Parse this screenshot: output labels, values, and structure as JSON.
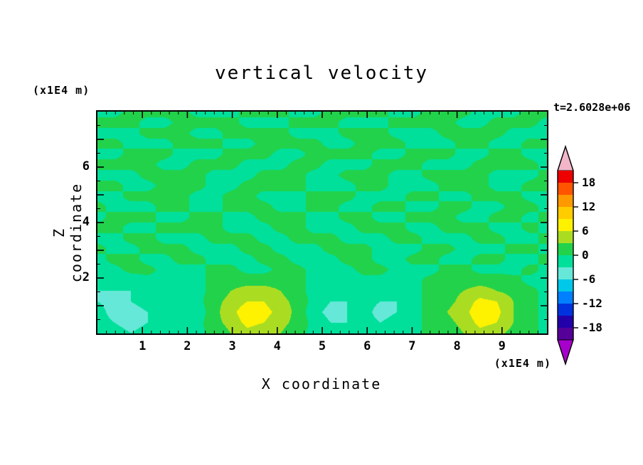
{
  "title": "vertical velocity",
  "time_label": "t=2.6028e+06",
  "x_axis_label": "X coordinate",
  "y_axis_label": "Z coordinate",
  "x_axis_unit": "(x1E4 m)",
  "y_axis_unit": "(x1E4 m)",
  "chart_data": {
    "type": "heatmap",
    "title": "vertical velocity",
    "xlabel": "X coordinate",
    "ylabel": "Z coordinate",
    "x_unit": "(x1E4 m)",
    "z_unit": "(x1E4 m)",
    "time": "t=2.6028e+06",
    "x_range": [
      0,
      10
    ],
    "z_range": [
      0,
      8
    ],
    "x_tick_labels": [
      "1",
      "2",
      "3",
      "4",
      "5",
      "6",
      "7",
      "8",
      "9"
    ],
    "x_tick_values": [
      1,
      2,
      3,
      4,
      5,
      6,
      7,
      8,
      9
    ],
    "x_minor_step": 0.2,
    "z_tick_labels": [
      "2",
      "4",
      "6"
    ],
    "z_tick_values": [
      2,
      4,
      6
    ],
    "z_major_values": [
      1,
      2,
      3,
      4,
      5,
      6,
      7
    ],
    "z_minor_step": 0.5,
    "contour_interval": 3,
    "contour_max": 21,
    "colorbar": {
      "labels": [
        "18",
        "12",
        "6",
        "0",
        "-6",
        "-12",
        "-18"
      ],
      "label_values": [
        18,
        12,
        6,
        0,
        -6,
        -12,
        -18
      ],
      "segment_colors_top_to_bottom": [
        "#ee0000",
        "#ff5500",
        "#ff9900",
        "#ffcc00",
        "#fff200",
        "#aadd22",
        "#22d24b",
        "#00e09b",
        "#66e8d8",
        "#00c8e8",
        "#0080ff",
        "#0033dd",
        "#2200aa",
        "#550099"
      ],
      "over_color": "#f2b6c8",
      "under_color": "#a800cc"
    },
    "grid": {
      "nx": 28,
      "nz": 22,
      "order": "rows from top (z=8) to bottom (z=0), columns x=0..10",
      "values": [
        [
          -1,
          -1,
          1,
          1,
          1,
          1,
          -1,
          -1,
          -1,
          1,
          1,
          1,
          -1,
          -1,
          1,
          1,
          1,
          1,
          -1,
          -1,
          1,
          1,
          1,
          -1,
          -1,
          -1,
          1,
          1
        ],
        [
          1,
          1,
          1,
          -1,
          -1,
          1,
          1,
          1,
          1,
          -1,
          -1,
          -1,
          1,
          1,
          1,
          -1,
          -1,
          -1,
          1,
          1,
          1,
          1,
          -1,
          -1,
          1,
          1,
          1,
          -1
        ],
        [
          -1,
          -1,
          -1,
          1,
          1,
          1,
          -1,
          -1,
          1,
          1,
          1,
          1,
          -1,
          -1,
          -1,
          1,
          1,
          1,
          -1,
          -1,
          -1,
          1,
          1,
          1,
          1,
          -1,
          -1,
          -1
        ],
        [
          1,
          1,
          -1,
          -1,
          -1,
          1,
          1,
          1,
          -1,
          -1,
          1,
          1,
          1,
          1,
          -1,
          -1,
          1,
          1,
          1,
          -1,
          -1,
          -1,
          1,
          1,
          -1,
          -1,
          1,
          1
        ],
        [
          -1,
          -1,
          1,
          1,
          1,
          -1,
          -1,
          -1,
          1,
          1,
          1,
          -1,
          -1,
          1,
          1,
          1,
          1,
          -1,
          -1,
          1,
          1,
          1,
          -1,
          -1,
          1,
          1,
          -1,
          -1
        ],
        [
          1,
          1,
          1,
          1,
          -1,
          -1,
          1,
          1,
          1,
          -1,
          -1,
          -1,
          1,
          1,
          -1,
          -1,
          -1,
          1,
          1,
          1,
          -1,
          -1,
          -1,
          1,
          1,
          1,
          1,
          -1
        ],
        [
          -1,
          -1,
          -1,
          1,
          1,
          1,
          1,
          -1,
          -1,
          -1,
          1,
          1,
          1,
          -1,
          -1,
          1,
          1,
          1,
          -1,
          -1,
          1,
          1,
          1,
          1,
          -1,
          -1,
          -1,
          1
        ],
        [
          1,
          1,
          -1,
          -1,
          1,
          1,
          1,
          -1,
          -1,
          1,
          1,
          1,
          1,
          -1,
          -1,
          -1,
          1,
          1,
          -1,
          -1,
          -1,
          1,
          1,
          1,
          -1,
          -1,
          1,
          1
        ],
        [
          -1,
          -1,
          1,
          1,
          1,
          1,
          -1,
          -1,
          1,
          1,
          -1,
          -1,
          -1,
          1,
          1,
          1,
          -1,
          -1,
          -1,
          1,
          1,
          -1,
          -1,
          1,
          1,
          1,
          -1,
          -1
        ],
        [
          1,
          -1,
          -1,
          -1,
          1,
          1,
          -1,
          -1,
          1,
          1,
          1,
          -1,
          -1,
          1,
          1,
          -1,
          -1,
          1,
          1,
          -1,
          -1,
          1,
          1,
          -1,
          -1,
          1,
          1,
          -1
        ],
        [
          -1,
          1,
          1,
          1,
          -1,
          -1,
          1,
          1,
          -1,
          -1,
          1,
          1,
          1,
          -1,
          -1,
          1,
          1,
          -1,
          -1,
          1,
          1,
          1,
          -1,
          -1,
          1,
          1,
          -1,
          1
        ],
        [
          1,
          1,
          -1,
          -1,
          1,
          1,
          1,
          1,
          -1,
          -1,
          -1,
          1,
          1,
          -1,
          -1,
          -1,
          1,
          1,
          1,
          -1,
          -1,
          1,
          1,
          1,
          -1,
          -1,
          1,
          -1
        ],
        [
          -1,
          -1,
          1,
          1,
          -1,
          -1,
          -1,
          1,
          1,
          1,
          -1,
          -1,
          1,
          1,
          1,
          -1,
          -1,
          -1,
          1,
          1,
          -1,
          -1,
          -1,
          1,
          1,
          -1,
          -1,
          1
        ],
        [
          1,
          -1,
          -1,
          1,
          1,
          1,
          -1,
          -1,
          -1,
          1,
          1,
          -1,
          -1,
          -1,
          1,
          1,
          1,
          -1,
          -1,
          -1,
          1,
          1,
          -1,
          -1,
          -1,
          1,
          1,
          -1
        ],
        [
          -1,
          1,
          1,
          -1,
          -1,
          1,
          1,
          -1,
          -1,
          -1,
          1,
          1,
          -1,
          -1,
          -1,
          1,
          1,
          -1,
          -1,
          1,
          1,
          -1,
          -1,
          1,
          1,
          -1,
          -1,
          1
        ],
        [
          -1,
          -1,
          1,
          1,
          -1,
          -1,
          -1,
          1,
          1,
          -1,
          -1,
          1,
          1,
          -1,
          -1,
          -1,
          1,
          1,
          -1,
          -1,
          -1,
          1,
          1,
          -1,
          -1,
          -1,
          1,
          -1
        ],
        [
          -2,
          -2,
          -2,
          -1,
          -1,
          -2,
          -1,
          1,
          2,
          2,
          2,
          2,
          1,
          -1,
          -1,
          -2,
          -1,
          -1,
          -2,
          -1,
          1,
          1,
          2,
          2,
          2,
          1,
          -1,
          -1
        ],
        [
          -3,
          -3,
          -3,
          -2,
          -2,
          -2,
          -1,
          1,
          3,
          4,
          4,
          3,
          1,
          -1,
          -2,
          -2,
          -2,
          -2,
          -2,
          -1,
          1,
          2,
          3,
          4,
          3,
          2,
          1,
          -1
        ],
        [
          -3,
          -4,
          -3,
          -2,
          -2,
          -3,
          -1,
          2,
          4,
          6,
          6,
          4,
          2,
          -1,
          -3,
          -3,
          -2,
          -3,
          -3,
          -1,
          1,
          2,
          4,
          7,
          6,
          3,
          1,
          -1
        ],
        [
          -2,
          -4,
          -4,
          -3,
          -2,
          -3,
          -2,
          2,
          5,
          8,
          7,
          5,
          2,
          -2,
          -4,
          -3,
          -2,
          -4,
          -3,
          -1,
          1,
          3,
          5,
          8,
          7,
          3,
          1,
          -1
        ],
        [
          -2,
          -3,
          -4,
          -3,
          -2,
          -3,
          -1,
          2,
          4,
          7,
          6,
          4,
          2,
          -1,
          -3,
          -3,
          -2,
          -3,
          -2,
          -1,
          1,
          2,
          4,
          7,
          6,
          3,
          1,
          -1
        ],
        [
          -1,
          -2,
          -3,
          -2,
          -1,
          -2,
          -1,
          1,
          3,
          5,
          4,
          3,
          1,
          -1,
          -2,
          -2,
          -1,
          -2,
          -2,
          -1,
          1,
          1,
          3,
          5,
          4,
          2,
          1,
          -1
        ]
      ]
    }
  }
}
